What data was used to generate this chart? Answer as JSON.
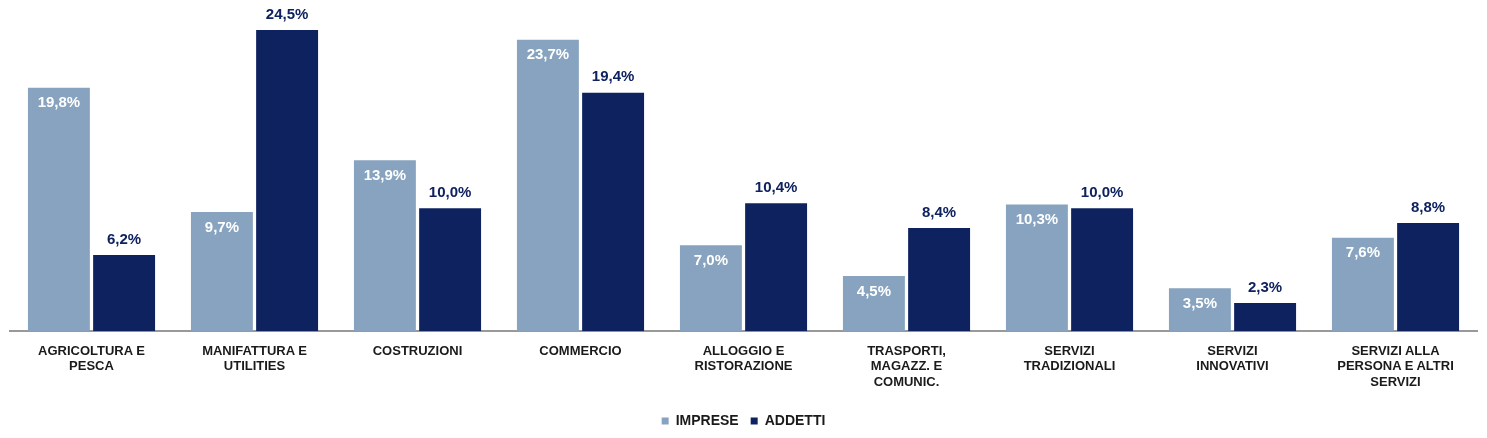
{
  "chart_data": {
    "type": "bar",
    "categories": [
      "AGRICOLTURA E PESCA",
      "MANIFATTURA E UTILITIES",
      "COSTRUZIONI",
      "COMMERCIO",
      "ALLOGGIO E RISTORAZIONE",
      "TRASPORTI, MAGAZZ. E COMUNIC.",
      "SERVIZI TRADIZIONALI",
      "SERVIZI INNOVATIVI",
      "SERVIZI ALLA PERSONA E ALTRI SERVIZI"
    ],
    "series": [
      {
        "name": "IMPRESE",
        "color": "#87a3bf",
        "values": [
          19.8,
          9.7,
          13.9,
          23.7,
          7.0,
          4.5,
          10.3,
          3.5,
          7.6
        ],
        "value_labels": [
          "19,8%",
          "9,7%",
          "13,9%",
          "23,7%",
          "7,0%",
          "4,5%",
          "10,3%",
          "3,5%",
          "7,6%"
        ]
      },
      {
        "name": "ADDETTI",
        "color": "#0e2260",
        "values": [
          6.2,
          24.5,
          10.0,
          19.4,
          10.4,
          8.4,
          10.0,
          2.3,
          8.8
        ],
        "value_labels": [
          "6,2%",
          "24,5%",
          "10,0%",
          "19,4%",
          "10,4%",
          "8,4%",
          "10,0%",
          "2,3%",
          "8,8%"
        ]
      }
    ],
    "legend": "bottom",
    "grid": false
  }
}
